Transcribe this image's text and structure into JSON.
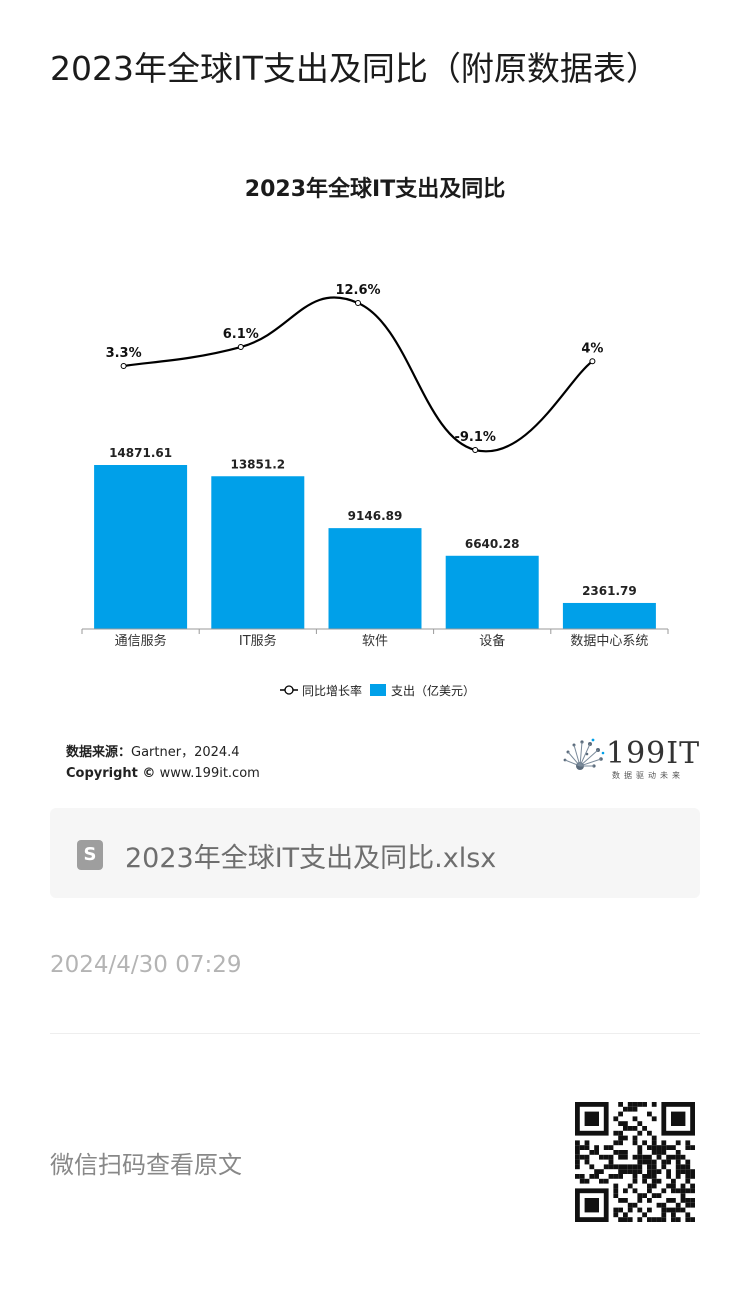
{
  "page": {
    "title": "2023年全球IT支出及同比（附原数据表）",
    "source_label": "数据来源：",
    "source_value": "Gartner，2024.4",
    "copyright_label": "Copyright ©",
    "copyright_value": "www.199it.com",
    "logo_text": "199IT",
    "logo_subtitle": "数据驱动未来",
    "attachment_name": "2023年全球IT支出及同比.xlsx",
    "attachment_icon": "spreadsheet-file-icon",
    "timestamp": "2024/4/30 07:29",
    "qr_hint": "微信扫码查看原文"
  },
  "colors": {
    "bar": "#00a0e9",
    "line": "#000000",
    "title": "#1b1b1b",
    "muted": "#b4b4b4"
  },
  "chart_data": {
    "type": "bar",
    "title": "2023年全球IT支出及同比",
    "categories": [
      "通信服务",
      "IT服务",
      "软件",
      "设备",
      "数据中心系统"
    ],
    "series": [
      {
        "name": "支出（亿美元）",
        "type": "bar",
        "values": [
          14871.61,
          13851.2,
          9146.89,
          6640.28,
          2361.79
        ],
        "labels": [
          "14871.61",
          "13851.2",
          "9146.89",
          "6640.28",
          "2361.79"
        ]
      },
      {
        "name": "同比增长率",
        "type": "line",
        "values": [
          3.3,
          6.1,
          12.6,
          -9.1,
          4
        ],
        "labels": [
          "3.3%",
          "6.1%",
          "12.6%",
          "-9.1%",
          "4%"
        ]
      }
    ],
    "legend": [
      "同比增长率",
      "支出（亿美元）"
    ],
    "legend_position": "bottom",
    "grid": false
  }
}
